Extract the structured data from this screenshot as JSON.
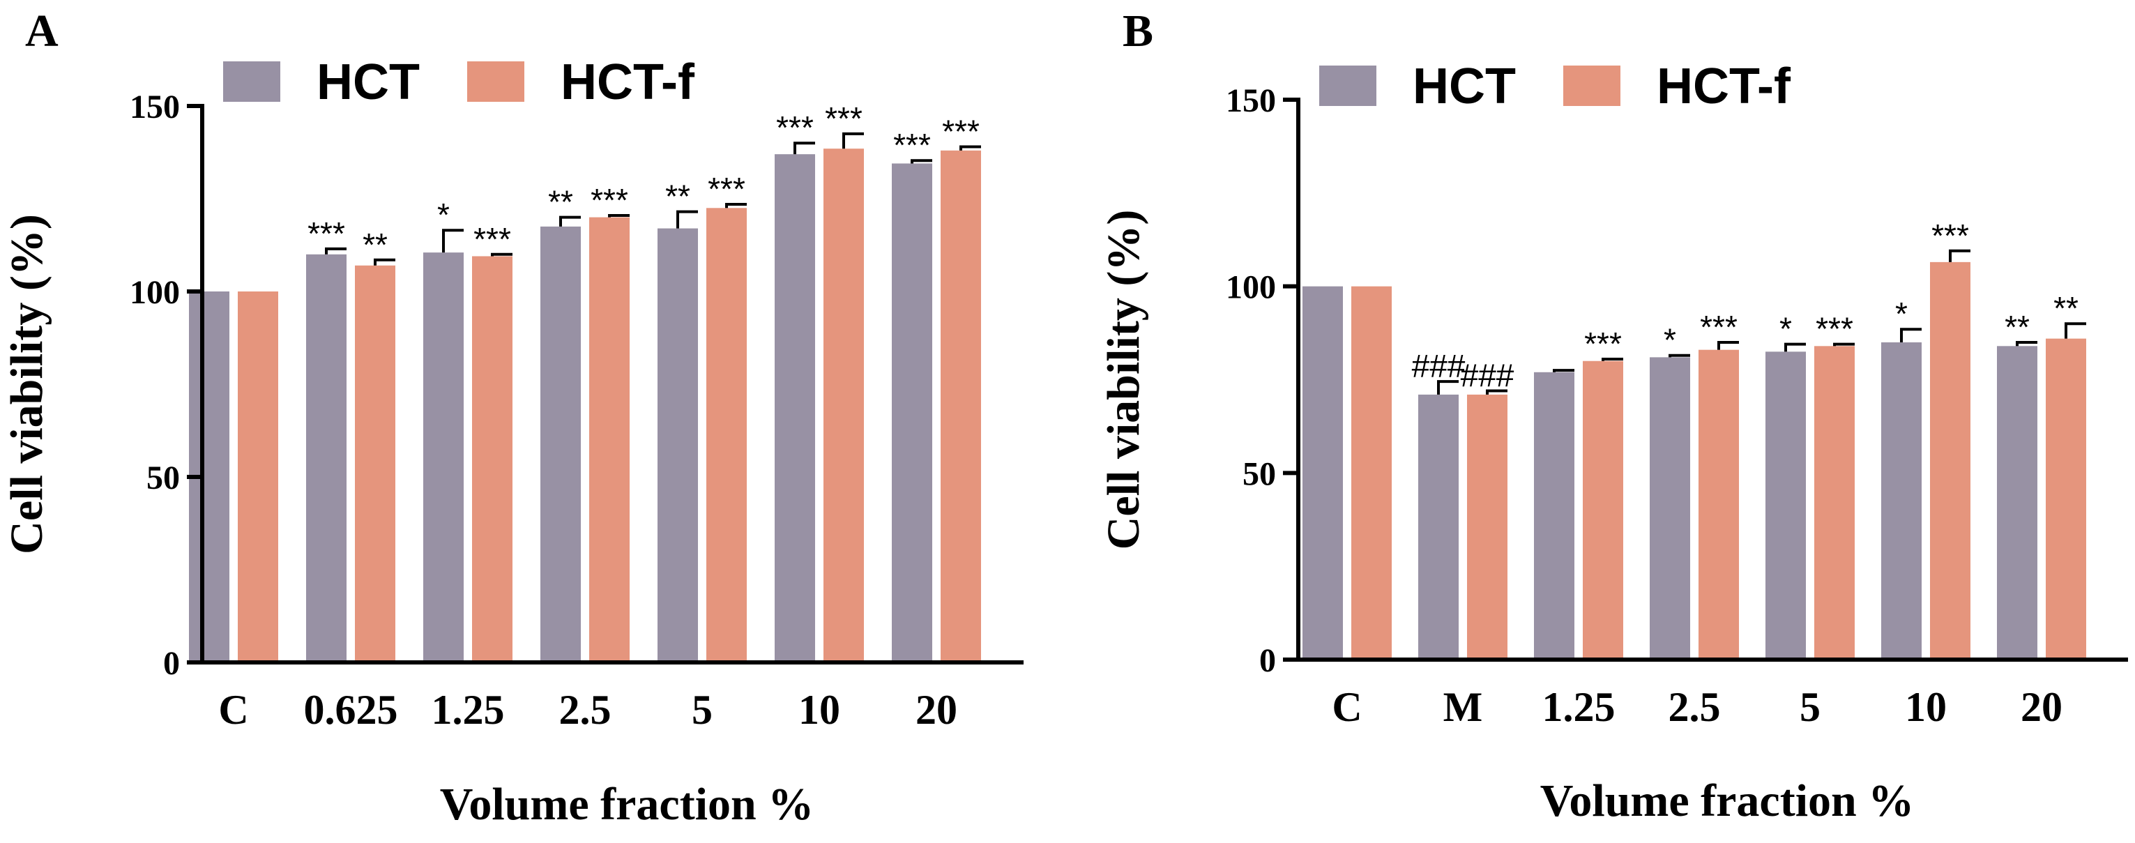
{
  "colors": {
    "HCT": "#9891a4",
    "HCT-f": "#e5957d",
    "axis": "#000000"
  },
  "chart_data": [
    {
      "type": "bar",
      "panel_label": "A",
      "xlabel": "Volume fraction %",
      "ylabel": "Cell viability (%)",
      "ylim": [
        0,
        150
      ],
      "yticks": [
        "0",
        "50",
        "100",
        "150"
      ],
      "ytick_values": [
        0,
        50,
        100,
        150
      ],
      "categories": [
        "C",
        "0.625",
        "1.25",
        "2.5",
        "5",
        "10",
        "20"
      ],
      "legend_position": "top-left",
      "series": [
        {
          "name": "HCT",
          "values": [
            100,
            110,
            110.5,
            117.5,
            117,
            137,
            134.5
          ],
          "errors": [
            0,
            1.5,
            6,
            2.5,
            4.5,
            3,
            0.8
          ],
          "labels": [
            "",
            "***",
            "*",
            "**",
            "**",
            "***",
            "***"
          ]
        },
        {
          "name": "HCT-f",
          "values": [
            100,
            107,
            109.5,
            120,
            122.5,
            138.5,
            138
          ],
          "errors": [
            0,
            1.5,
            0.5,
            0.5,
            1,
            4,
            1
          ],
          "labels": [
            "",
            "**",
            "***",
            "***",
            "***",
            "***",
            "***"
          ]
        }
      ]
    },
    {
      "type": "bar",
      "panel_label": "B",
      "xlabel": "Volume fraction %",
      "ylabel": "Cell viability (%)",
      "ylim": [
        0,
        150
      ],
      "yticks": [
        "0",
        "50",
        "100",
        "150"
      ],
      "ytick_values": [
        0,
        50,
        100,
        150
      ],
      "categories": [
        "C",
        "M",
        "1.25",
        "2.5",
        "5",
        "10",
        "20"
      ],
      "legend_position": "top-left",
      "series": [
        {
          "name": "HCT",
          "values": [
            100,
            71,
            77,
            81,
            82.5,
            85,
            84
          ],
          "errors": [
            0,
            3.5,
            0.5,
            0.5,
            2,
            3.5,
            1
          ],
          "labels": [
            "",
            "###",
            "",
            "*",
            "*",
            "*",
            "**"
          ]
        },
        {
          "name": "HCT-f",
          "values": [
            100,
            71,
            80,
            83,
            84,
            106.5,
            86
          ],
          "errors": [
            0,
            1,
            0.5,
            2,
            0.5,
            3,
            4
          ],
          "labels": [
            "",
            "###",
            "***",
            "***",
            "***",
            "***",
            "**"
          ]
        }
      ]
    }
  ]
}
